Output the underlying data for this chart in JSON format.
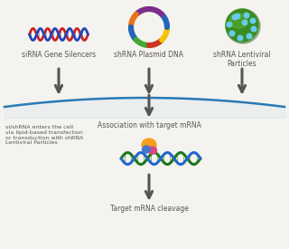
{
  "bg_color": "#f5f3ef",
  "arrow_color": "#555555",
  "curve_color": "#2a7ab5",
  "text_color": "#555555",
  "labels": {
    "siRNA": "siRNA Gene Silencers",
    "shRNA_plasmid": "shRNA Plasmid DNA",
    "shRNA_lentiviral": "shRNA Lentiviral\nParticles",
    "association": "Association with target mRNA",
    "cleavage": "Target mRNA cleavage",
    "side_note": "si/shRNA enters the cell\nvia lipid-based transfection\nor transduction with shRNA\nLentiviral Particles"
  },
  "font_size": 5.5,
  "side_note_font_size": 4.5,
  "plasmid_colors": [
    "#7b2d8b",
    "#e8731a",
    "#2266bb",
    "#44aa33",
    "#cc3322",
    "#f5c200",
    "#2266bb",
    "#7b2d8b"
  ],
  "dna_color1": "#cc2222",
  "dna_color2": "#2244bb",
  "virus_main": "#3a8c20",
  "virus_light": "#5ab030",
  "virus_dot": "#66ccee",
  "mrna_color1": "#1a7a1a",
  "mrna_color2": "#2266cc",
  "risc_orange": "#f5a020",
  "risc_pink": "#dd4488",
  "risc_blue": "#4477cc"
}
